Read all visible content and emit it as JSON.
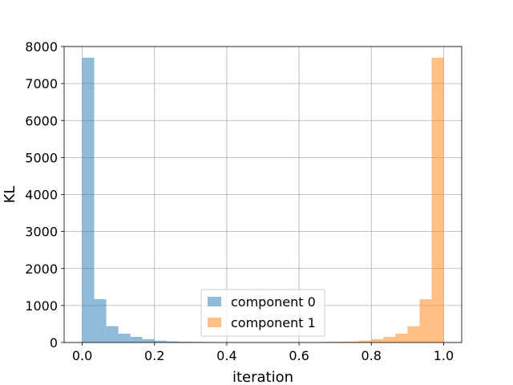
{
  "chart_data": {
    "type": "bar",
    "title": "",
    "xlabel": "iteration",
    "ylabel": "KL",
    "xlim": [
      -0.05,
      1.05
    ],
    "ylim": [
      0,
      8000
    ],
    "xticks": [
      "0.0",
      "0.2",
      "0.4",
      "0.6",
      "0.8",
      "1.0"
    ],
    "xtick_values": [
      0.0,
      0.2,
      0.4,
      0.6,
      0.8,
      1.0
    ],
    "yticks": [
      "0",
      "1000",
      "2000",
      "3000",
      "4000",
      "5000",
      "6000",
      "7000",
      "8000"
    ],
    "ytick_values": [
      0,
      1000,
      2000,
      3000,
      4000,
      5000,
      6000,
      7000,
      8000
    ],
    "grid": true,
    "legend_position": "bottom-center",
    "bin_width": 0.0333,
    "series": [
      {
        "name": "component 0",
        "color": "#1f77b4",
        "opacity": 0.5,
        "bins": [
          {
            "x0": 0.0,
            "value": 7700
          },
          {
            "x0": 0.0333,
            "value": 1170
          },
          {
            "x0": 0.0667,
            "value": 440
          },
          {
            "x0": 0.1,
            "value": 240
          },
          {
            "x0": 0.1333,
            "value": 150
          },
          {
            "x0": 0.1667,
            "value": 90
          },
          {
            "x0": 0.2,
            "value": 50
          },
          {
            "x0": 0.2333,
            "value": 30
          },
          {
            "x0": 0.2667,
            "value": 20
          },
          {
            "x0": 0.3,
            "value": 15
          },
          {
            "x0": 0.3333,
            "value": 10
          }
        ]
      },
      {
        "name": "component 1",
        "color": "#ff7f0e",
        "opacity": 0.5,
        "bins": [
          {
            "x0": 0.6333,
            "value": 10
          },
          {
            "x0": 0.6667,
            "value": 15
          },
          {
            "x0": 0.7,
            "value": 20
          },
          {
            "x0": 0.7333,
            "value": 30
          },
          {
            "x0": 0.7667,
            "value": 50
          },
          {
            "x0": 0.8,
            "value": 90
          },
          {
            "x0": 0.8333,
            "value": 150
          },
          {
            "x0": 0.8667,
            "value": 240
          },
          {
            "x0": 0.9,
            "value": 440
          },
          {
            "x0": 0.9333,
            "value": 1170
          },
          {
            "x0": 0.9667,
            "value": 7700
          }
        ]
      }
    ]
  }
}
